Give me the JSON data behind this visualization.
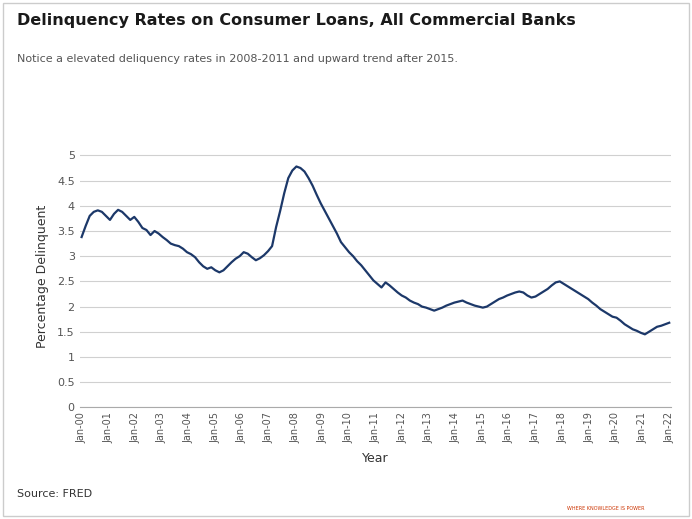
{
  "title": "Delinquency Rates on Consumer Loans, All Commercial Banks",
  "subtitle": "Notice a elevated deliquency rates in 2008-2011 and upward trend after 2015.",
  "xlabel": "Year",
  "ylabel": "Percentage Delinquent",
  "source": "Source: FRED",
  "line_color": "#1c3869",
  "background_color": "#ffffff",
  "ylim": [
    0,
    5.2
  ],
  "yticks": [
    0,
    0.5,
    1,
    1.5,
    2,
    2.5,
    3,
    3.5,
    4,
    4.5,
    5
  ],
  "ytick_labels": [
    "0",
    "0.5",
    "1",
    "1.5",
    "2",
    "2.5",
    "3",
    "3.5",
    "4",
    "4.5",
    "5"
  ],
  "xtick_labels": [
    "Jan-00",
    "Jan-01",
    "Jan-02",
    "Jan-03",
    "Jan-04",
    "Jan-05",
    "Jan-06",
    "Jan-07",
    "Jan-08",
    "Jan-09",
    "Jan-10",
    "Jan-11",
    "Jan-12",
    "Jan-13",
    "Jan-14",
    "Jan-15",
    "Jan-16",
    "Jan-17",
    "Jan-18",
    "Jan-19",
    "Jan-20",
    "Jan-21",
    "Jan-22"
  ],
  "values": [
    3.38,
    3.6,
    3.8,
    3.88,
    3.91,
    3.88,
    3.8,
    3.72,
    3.84,
    3.92,
    3.88,
    3.8,
    3.72,
    3.78,
    3.68,
    3.56,
    3.52,
    3.42,
    3.5,
    3.45,
    3.38,
    3.32,
    3.25,
    3.22,
    3.2,
    3.15,
    3.08,
    3.04,
    2.98,
    2.88,
    2.8,
    2.75,
    2.78,
    2.72,
    2.68,
    2.72,
    2.8,
    2.88,
    2.95,
    3.0,
    3.08,
    3.05,
    2.98,
    2.92,
    2.96,
    3.02,
    3.1,
    3.2,
    3.58,
    3.9,
    4.25,
    4.55,
    4.7,
    4.78,
    4.75,
    4.68,
    4.55,
    4.4,
    4.22,
    4.05,
    3.9,
    3.75,
    3.6,
    3.45,
    3.28,
    3.18,
    3.08,
    3.0,
    2.9,
    2.82,
    2.72,
    2.62,
    2.52,
    2.45,
    2.38,
    2.48,
    2.42,
    2.35,
    2.28,
    2.22,
    2.18,
    2.12,
    2.08,
    2.05,
    2.0,
    1.98,
    1.95,
    1.92,
    1.95,
    1.98,
    2.02,
    2.05,
    2.08,
    2.1,
    2.12,
    2.08,
    2.05,
    2.02,
    2.0,
    1.98,
    2.0,
    2.05,
    2.1,
    2.15,
    2.18,
    2.22,
    2.25,
    2.28,
    2.3,
    2.28,
    2.22,
    2.18,
    2.2,
    2.25,
    2.3,
    2.35,
    2.42,
    2.48,
    2.5,
    2.45,
    2.4,
    2.35,
    2.3,
    2.25,
    2.2,
    2.15,
    2.08,
    2.02,
    1.95,
    1.9,
    1.85,
    1.8,
    1.78,
    1.72,
    1.65,
    1.6,
    1.55,
    1.52,
    1.48,
    1.45,
    1.5,
    1.55,
    1.6,
    1.62,
    1.65,
    1.68
  ],
  "n_points": 146,
  "line_width": 1.6,
  "grid_color": "#d0d0d0",
  "tick_color": "#555555",
  "border_color": "#cccccc"
}
